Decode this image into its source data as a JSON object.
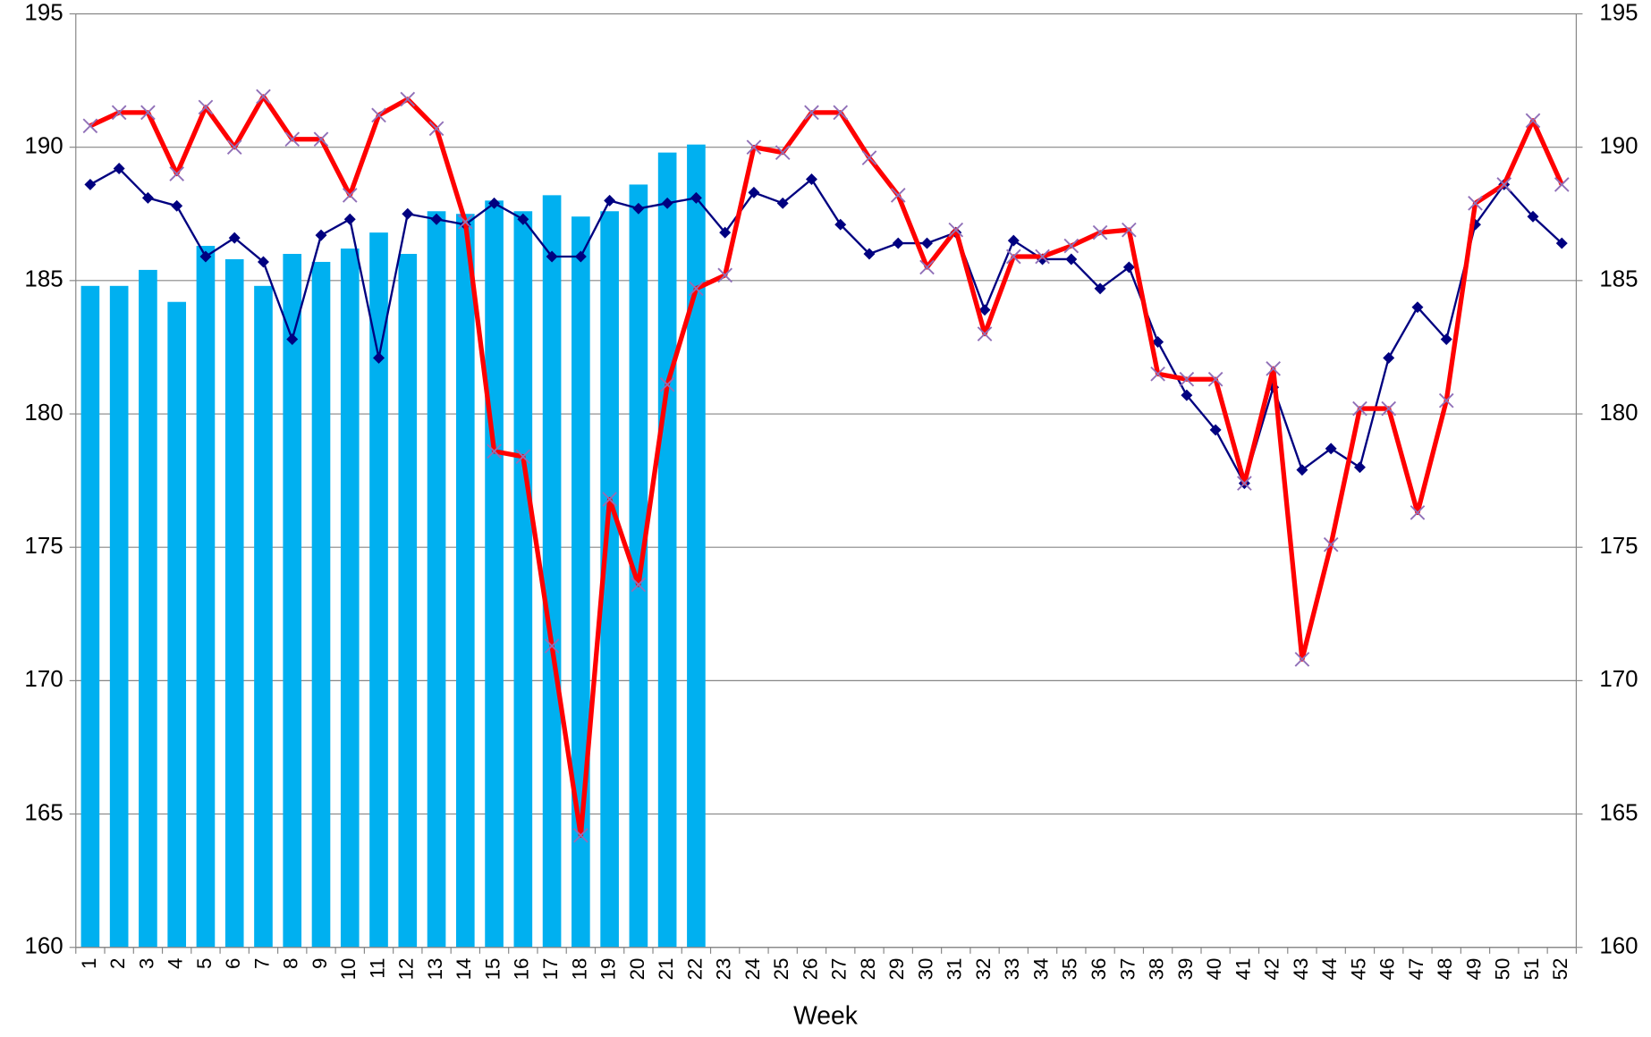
{
  "chart_data": {
    "type": "combo",
    "x_label": "Week",
    "categories": [
      "1",
      "2",
      "3",
      "4",
      "5",
      "6",
      "7",
      "8",
      "9",
      "10",
      "11",
      "12",
      "13",
      "14",
      "15",
      "16",
      "17",
      "18",
      "19",
      "20",
      "21",
      "22",
      "23",
      "24",
      "25",
      "26",
      "27",
      "28",
      "29",
      "30",
      "31",
      "32",
      "33",
      "34",
      "35",
      "36",
      "37",
      "38",
      "39",
      "40",
      "41",
      "42",
      "43",
      "44",
      "45",
      "46",
      "47",
      "48",
      "49",
      "50",
      "51",
      "52"
    ],
    "ylim": [
      160,
      195
    ],
    "yticks": [
      160,
      165,
      170,
      175,
      180,
      185,
      190,
      195
    ],
    "y2lim": [
      160,
      195
    ],
    "y2ticks": [
      160,
      165,
      170,
      175,
      180,
      185,
      190,
      195
    ],
    "grid": true,
    "series": [
      {
        "type": "bar",
        "color": "#00b0f0",
        "values": [
          184.8,
          184.8,
          185.4,
          184.2,
          186.3,
          185.8,
          184.8,
          186.0,
          185.7,
          186.2,
          186.8,
          186.0,
          187.6,
          187.5,
          188.0,
          187.6,
          188.2,
          187.4,
          187.6,
          188.6,
          189.8,
          190.1,
          null,
          null,
          null,
          null,
          null,
          null,
          null,
          null,
          null,
          null,
          null,
          null,
          null,
          null,
          null,
          null,
          null,
          null,
          null,
          null,
          null,
          null,
          null,
          null,
          null,
          null,
          null,
          null,
          null,
          null
        ]
      },
      {
        "type": "line",
        "color": "#000080",
        "marker": "diamond",
        "values": [
          188.6,
          189.2,
          188.1,
          187.8,
          185.9,
          186.6,
          185.7,
          182.8,
          186.7,
          187.3,
          182.1,
          187.5,
          187.3,
          187.1,
          187.9,
          187.3,
          185.9,
          185.9,
          188.0,
          187.7,
          187.9,
          188.1,
          186.8,
          188.3,
          187.9,
          188.8,
          187.1,
          186.0,
          186.4,
          186.4,
          186.8,
          183.9,
          186.5,
          185.8,
          185.8,
          184.7,
          185.5,
          182.7,
          180.7,
          179.4,
          177.4,
          181.0,
          177.9,
          178.7,
          178.0,
          182.1,
          184.0,
          182.8,
          187.1,
          188.6,
          187.4,
          186.4
        ]
      },
      {
        "type": "line",
        "color": "#ff0000",
        "marker": "x",
        "marker_color": "#9070b8",
        "values": [
          190.8,
          191.3,
          191.3,
          189.0,
          191.5,
          190.0,
          191.9,
          190.3,
          190.3,
          188.2,
          191.2,
          191.8,
          190.7,
          187.2,
          178.6,
          178.4,
          171.3,
          164.2,
          176.8,
          173.6,
          181.1,
          184.7,
          185.2,
          190.0,
          189.8,
          191.3,
          191.3,
          189.6,
          188.2,
          185.5,
          186.9,
          183.0,
          185.9,
          185.9,
          186.3,
          186.8,
          186.9,
          181.5,
          181.3,
          181.3,
          177.4,
          181.7,
          170.8,
          175.1,
          180.2,
          180.2,
          176.3,
          180.5,
          187.9,
          188.6,
          191.0,
          188.6
        ]
      }
    ]
  }
}
